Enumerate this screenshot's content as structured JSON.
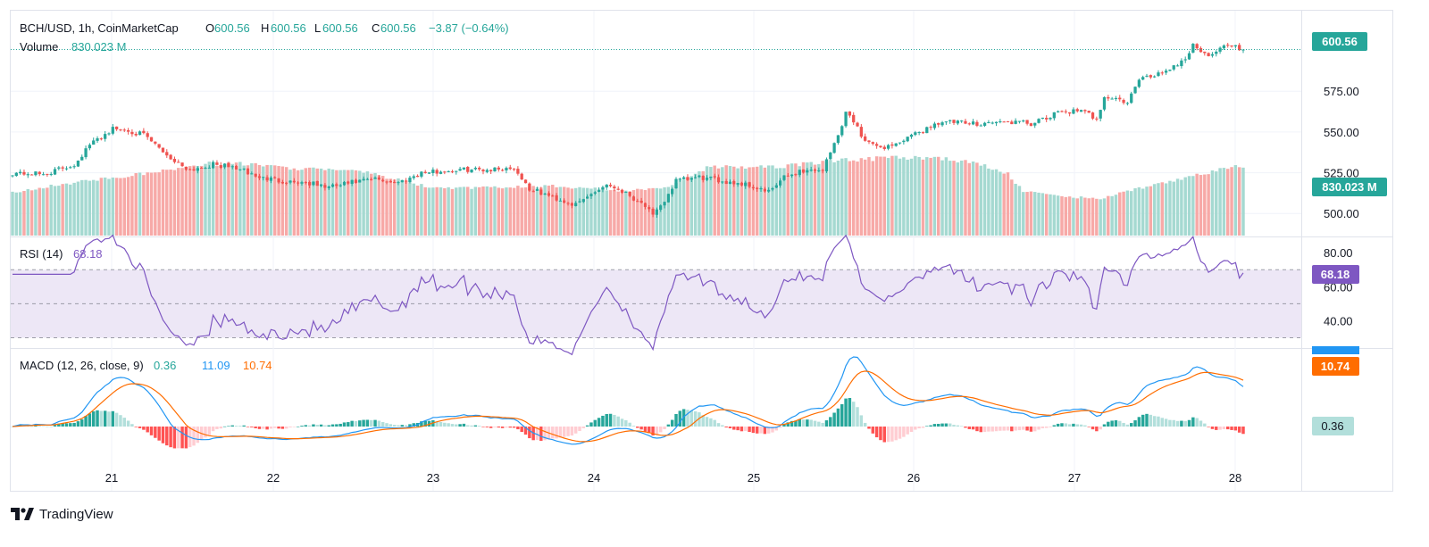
{
  "header": {
    "symbol": "BCH/USD, 1h, CoinMarketCap",
    "o_label": "O",
    "o_value": "600.56",
    "h_label": "H",
    "h_value": "600.56",
    "l_label": "L",
    "l_value": "600.56",
    "c_label": "C",
    "c_value": "600.56",
    "change": "−3.87 (−0.64%)",
    "volume_label": "Volume",
    "volume_value": "830.023 M"
  },
  "rsi": {
    "label": "RSI (14)",
    "value": "68.18"
  },
  "macd": {
    "label": "MACD (12, 26, close, 9)",
    "hist": "0.36",
    "macd_value": "11.09",
    "signal": "10.74"
  },
  "footer": {
    "brand": "TradingView"
  },
  "colors": {
    "up": "#26a69a",
    "down": "#ef5350",
    "vol_up": "#a5d9d1",
    "vol_down": "#f7a9a7",
    "rsi_line": "#7e57c2",
    "rsi_band": "#ede7f6",
    "macd_line": "#2196f3",
    "signal_line": "#ff6d00",
    "hist_up_strong": "#26a69a",
    "hist_up_weak": "#b2dfdb",
    "hist_down_strong": "#ff5252",
    "hist_down_weak": "#ffcdd2",
    "grid": "#f0f3fa",
    "text": "#131722",
    "axis_text": "#131722"
  },
  "chart_data": [
    {
      "type": "candlestick",
      "title": "BCH/USD, 1h, CoinMarketCap",
      "x_ticks": [
        "21",
        "22",
        "23",
        "24",
        "25",
        "26",
        "27",
        "28"
      ],
      "y_ticks": [
        "500.00",
        "525.00",
        "550.00",
        "575.00"
      ],
      "ylim": [
        487,
        620
      ],
      "last_price_label": "600.56",
      "volume_label": "830.023 M",
      "anchors": [
        [
          0,
          525
        ],
        [
          8,
          524
        ],
        [
          16,
          530
        ],
        [
          20,
          542
        ],
        [
          26,
          552
        ],
        [
          30,
          551
        ],
        [
          34,
          548
        ],
        [
          38,
          540
        ],
        [
          42,
          532
        ],
        [
          46,
          527
        ],
        [
          52,
          530
        ],
        [
          58,
          528
        ],
        [
          64,
          522
        ],
        [
          70,
          520
        ],
        [
          76,
          519
        ],
        [
          82,
          516
        ],
        [
          88,
          519
        ],
        [
          94,
          521
        ],
        [
          100,
          519
        ],
        [
          106,
          525
        ],
        [
          112,
          526
        ],
        [
          118,
          527
        ],
        [
          124,
          527
        ],
        [
          130,
          528
        ],
        [
          134,
          515
        ],
        [
          140,
          510
        ],
        [
          146,
          505
        ],
        [
          150,
          512
        ],
        [
          154,
          518
        ],
        [
          158,
          514
        ],
        [
          162,
          508
        ],
        [
          164,
          505
        ],
        [
          166,
          498
        ],
        [
          168,
          504
        ],
        [
          172,
          520
        ],
        [
          178,
          522
        ],
        [
          184,
          520
        ],
        [
          190,
          518
        ],
        [
          196,
          513
        ],
        [
          200,
          522
        ],
        [
          204,
          526
        ],
        [
          210,
          527
        ],
        [
          214,
          548
        ],
        [
          216,
          562
        ],
        [
          218,
          557
        ],
        [
          220,
          548
        ],
        [
          224,
          540
        ],
        [
          228,
          542
        ],
        [
          232,
          546
        ],
        [
          236,
          551
        ],
        [
          240,
          556
        ],
        [
          244,
          556
        ],
        [
          248,
          555
        ],
        [
          254,
          556
        ],
        [
          260,
          556
        ],
        [
          264,
          555
        ],
        [
          268,
          558
        ],
        [
          272,
          563
        ],
        [
          278,
          562
        ],
        [
          281,
          558
        ],
        [
          283,
          572
        ],
        [
          286,
          570
        ],
        [
          289,
          568
        ],
        [
          292,
          582
        ],
        [
          296,
          585
        ],
        [
          300,
          589
        ],
        [
          304,
          595
        ],
        [
          306,
          604
        ],
        [
          309,
          597
        ],
        [
          312,
          600
        ],
        [
          316,
          604
        ],
        [
          318,
          600.56
        ]
      ],
      "volume_anchors": [
        [
          0,
          0.35
        ],
        [
          20,
          0.45
        ],
        [
          30,
          0.48
        ],
        [
          50,
          0.58
        ],
        [
          60,
          0.58
        ],
        [
          70,
          0.55
        ],
        [
          90,
          0.52
        ],
        [
          110,
          0.38
        ],
        [
          140,
          0.4
        ],
        [
          160,
          0.36
        ],
        [
          170,
          0.4
        ],
        [
          180,
          0.55
        ],
        [
          200,
          0.56
        ],
        [
          214,
          0.61
        ],
        [
          230,
          0.63
        ],
        [
          240,
          0.63
        ],
        [
          250,
          0.58
        ],
        [
          258,
          0.5
        ],
        [
          262,
          0.36
        ],
        [
          270,
          0.32
        ],
        [
          282,
          0.3
        ],
        [
          292,
          0.38
        ],
        [
          308,
          0.5
        ],
        [
          318,
          0.56
        ]
      ]
    },
    {
      "type": "line",
      "title": "RSI (14)",
      "y_ticks": [
        "40.00",
        "60.00",
        "80.00"
      ],
      "ylim": [
        25,
        88
      ],
      "band": [
        30,
        70
      ],
      "midline": 50,
      "current_value": "68.18"
    },
    {
      "type": "line",
      "title": "MACD (12, 26, close, 9)",
      "series": [
        {
          "name": "MACD",
          "last": 11.09
        },
        {
          "name": "Signal",
          "last": 10.74
        },
        {
          "name": "Histogram",
          "last": 0.36
        }
      ]
    }
  ]
}
